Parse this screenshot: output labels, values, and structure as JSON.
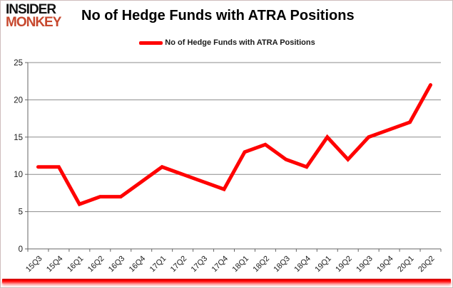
{
  "branding": {
    "logo_line1": "INSIDER",
    "logo_line2": "MONKEY",
    "logo_line2_color": "#c7482e"
  },
  "header": {
    "title": "No of Hedge Funds with ATRA Positions"
  },
  "legend": {
    "label": "No of Hedge Funds with ATRA Positions",
    "marker_color": "#ff0000"
  },
  "chart_data": {
    "type": "line",
    "title": "No of Hedge Funds with ATRA Positions",
    "categories": [
      "15Q3",
      "15Q4",
      "16Q1",
      "16Q2",
      "16Q3",
      "16Q4",
      "17Q1",
      "17Q2",
      "17Q3",
      "17Q4",
      "18Q1",
      "18Q2",
      "18Q3",
      "18Q4",
      "19Q1",
      "19Q2",
      "19Q3",
      "19Q4",
      "20Q1",
      "20Q2"
    ],
    "series": [
      {
        "name": "No of Hedge Funds with ATRA Positions",
        "color": "#ff0000",
        "values": [
          11,
          11,
          6,
          7,
          7,
          9,
          11,
          10,
          9,
          8,
          13,
          14,
          12,
          11,
          15,
          12,
          15,
          16,
          17,
          22
        ]
      }
    ],
    "xlabel": "",
    "ylabel": "",
    "ylim": [
      0,
      25
    ],
    "yticks": [
      0,
      5,
      10,
      15,
      20,
      25
    ],
    "grid": true,
    "grid_color": "#8c8c8c",
    "axis_color": "#666666",
    "tick_label_color": "#1a1a1a",
    "legend_position": "top-center"
  },
  "footer": {
    "accent_bar_color": "#ff0000"
  }
}
